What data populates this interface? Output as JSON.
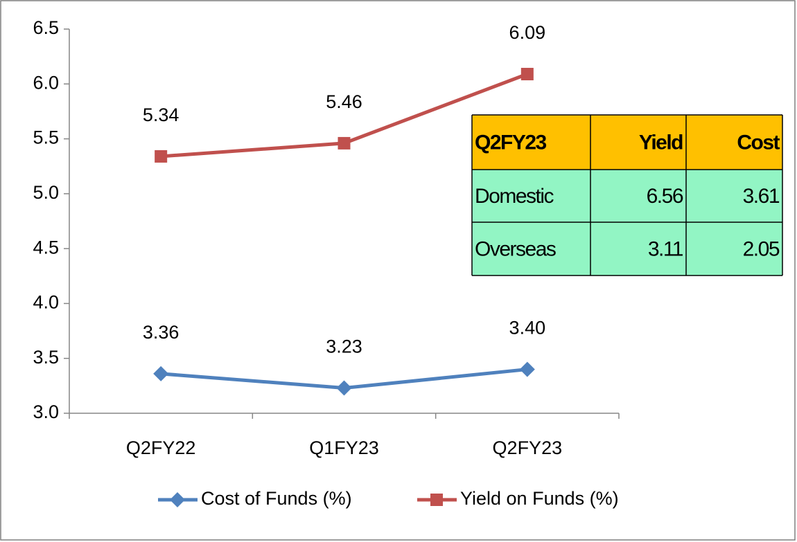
{
  "chart_data": {
    "type": "line",
    "categories": [
      "Q2FY22",
      "Q1FY23",
      "Q2FY23"
    ],
    "series": [
      {
        "name": "Cost of Funds (%)",
        "color": "#4f81bd",
        "marker": "diamond",
        "values": [
          3.36,
          3.23,
          3.4
        ],
        "value_labels": [
          "3.36",
          "3.23",
          "3.40"
        ]
      },
      {
        "name": "Yield on Funds (%)",
        "color": "#c0504d",
        "marker": "square",
        "values": [
          5.34,
          5.46,
          6.09
        ],
        "value_labels": [
          "5.34",
          "5.46",
          "6.09"
        ]
      }
    ],
    "ylim": [
      3,
      6.5
    ],
    "yticks": [
      {
        "value": 3,
        "label": "3.0"
      },
      3.5,
      {
        "value": 4,
        "label": "4.0"
      },
      4.5,
      {
        "value": 5,
        "label": "5.0"
      },
      5.5,
      {
        "value": 6,
        "label": "6.0"
      },
      6.5
    ],
    "grid": false,
    "legend": "bottom",
    "table": {
      "header": [
        "Q2FY23",
        "Yield",
        "Cost"
      ],
      "rows": [
        [
          "Domestic",
          6.56,
          3.61
        ],
        [
          "Overseas",
          3.11,
          2.05
        ]
      ],
      "header_color": "#ffc000",
      "row_color": "#92f5c4"
    }
  }
}
